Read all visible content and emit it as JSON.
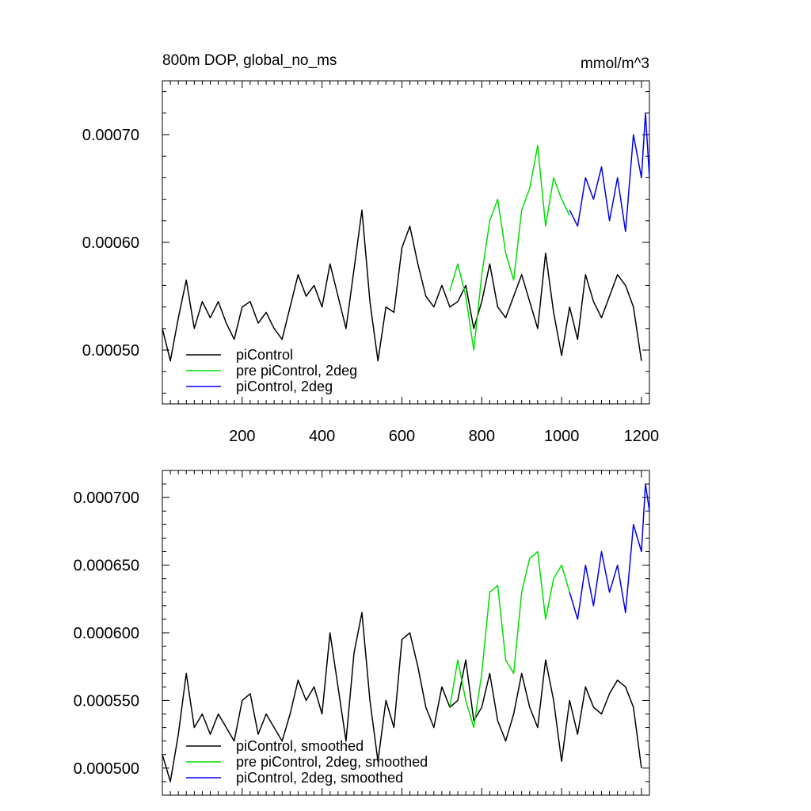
{
  "chart_data": [
    {
      "type": "line",
      "title": "800m DOP, global_no_ms",
      "units": "mmol/m^3",
      "xlim": [
        0,
        1220
      ],
      "ylim": [
        0.00045,
        0.00075
      ],
      "x_tick_labels": [
        "200",
        "400",
        "600",
        "800",
        "1000",
        "1200"
      ],
      "x_tick_values": [
        200,
        400,
        600,
        800,
        1000,
        1200
      ],
      "y_tick_labels": [
        "0.00050",
        "0.00060",
        "0.00070"
      ],
      "y_tick_values": [
        0.0005,
        0.0006,
        0.0007
      ],
      "legend_position": "bottom-left",
      "series": [
        {
          "name": "piControl",
          "color": "#000000",
          "x": [
            0,
            20,
            40,
            60,
            80,
            100,
            120,
            140,
            160,
            180,
            200,
            220,
            240,
            260,
            280,
            300,
            320,
            340,
            360,
            380,
            400,
            420,
            440,
            460,
            480,
            500,
            520,
            540,
            560,
            580,
            600,
            620,
            640,
            660,
            680,
            700,
            720,
            740,
            760,
            780,
            800,
            820,
            840,
            860,
            880,
            900,
            920,
            940,
            960,
            980,
            1000,
            1020,
            1040,
            1060,
            1080,
            1100,
            1120,
            1140,
            1160,
            1180,
            1200
          ],
          "y": [
            0.00052,
            0.00049,
            0.00053,
            0.000565,
            0.00052,
            0.000545,
            0.00053,
            0.000545,
            0.000525,
            0.00051,
            0.00054,
            0.000545,
            0.000525,
            0.000535,
            0.00052,
            0.00051,
            0.00054,
            0.00057,
            0.00055,
            0.00056,
            0.00054,
            0.00058,
            0.00055,
            0.00052,
            0.000575,
            0.00063,
            0.000545,
            0.00049,
            0.00054,
            0.000535,
            0.000595,
            0.000615,
            0.00058,
            0.00055,
            0.00054,
            0.00056,
            0.00054,
            0.000545,
            0.00056,
            0.00052,
            0.000545,
            0.00058,
            0.00054,
            0.00053,
            0.00055,
            0.00057,
            0.000545,
            0.00052,
            0.00059,
            0.000535,
            0.000495,
            0.00054,
            0.00051,
            0.00057,
            0.000545,
            0.00053,
            0.00055,
            0.00057,
            0.00056,
            0.00054,
            0.00049
          ]
        },
        {
          "name": "pre piControl, 2deg",
          "color": "#00dd00",
          "x": [
            720,
            740,
            760,
            780,
            800,
            820,
            840,
            860,
            880,
            900,
            920,
            940,
            960,
            980,
            1000,
            1020
          ],
          "y": [
            0.000555,
            0.00058,
            0.00055,
            0.0005,
            0.00057,
            0.00062,
            0.00064,
            0.00059,
            0.000565,
            0.00063,
            0.00065,
            0.00069,
            0.000615,
            0.00066,
            0.00064,
            0.000625
          ]
        },
        {
          "name": "piControl, 2deg",
          "color": "#0000ee",
          "x": [
            1020,
            1040,
            1060,
            1080,
            1100,
            1120,
            1140,
            1160,
            1180,
            1200,
            1210,
            1220
          ],
          "y": [
            0.00063,
            0.000615,
            0.00066,
            0.00064,
            0.00067,
            0.00062,
            0.00066,
            0.00061,
            0.0007,
            0.00066,
            0.00072,
            0.00066
          ]
        }
      ]
    },
    {
      "type": "line",
      "xlim": [
        0,
        1220
      ],
      "ylim": [
        0.00048,
        0.00072
      ],
      "y_tick_labels": [
        "0.000500",
        "0.000550",
        "0.000600",
        "0.000650",
        "0.000700"
      ],
      "y_tick_values": [
        0.0005,
        0.00055,
        0.0006,
        0.00065,
        0.0007
      ],
      "legend_position": "bottom-left",
      "series": [
        {
          "name": "piControl, smoothed",
          "color": "#000000",
          "x": [
            0,
            20,
            40,
            60,
            80,
            100,
            120,
            140,
            160,
            180,
            200,
            220,
            240,
            260,
            280,
            300,
            320,
            340,
            360,
            380,
            400,
            420,
            440,
            460,
            480,
            500,
            520,
            540,
            560,
            580,
            600,
            620,
            640,
            660,
            680,
            700,
            720,
            740,
            760,
            780,
            800,
            820,
            840,
            860,
            880,
            900,
            920,
            940,
            960,
            980,
            1000,
            1020,
            1040,
            1060,
            1080,
            1100,
            1120,
            1140,
            1160,
            1180,
            1200
          ],
          "y": [
            0.00051,
            0.00049,
            0.000525,
            0.00057,
            0.00053,
            0.00054,
            0.000525,
            0.00054,
            0.00053,
            0.00052,
            0.00055,
            0.000555,
            0.000525,
            0.00054,
            0.00053,
            0.00052,
            0.00054,
            0.000565,
            0.00055,
            0.00056,
            0.00054,
            0.0006,
            0.00056,
            0.00052,
            0.000585,
            0.000615,
            0.00055,
            0.000505,
            0.00055,
            0.00053,
            0.000595,
            0.0006,
            0.000575,
            0.000545,
            0.00053,
            0.00056,
            0.000545,
            0.00055,
            0.00058,
            0.000535,
            0.000545,
            0.00057,
            0.000535,
            0.00052,
            0.00054,
            0.00057,
            0.000545,
            0.00053,
            0.00058,
            0.00055,
            0.000505,
            0.00055,
            0.000525,
            0.00056,
            0.000545,
            0.00054,
            0.000555,
            0.000565,
            0.00056,
            0.000545,
            0.0005
          ]
        },
        {
          "name": "pre piControl, 2deg, smoothed",
          "color": "#00dd00",
          "x": [
            720,
            740,
            760,
            780,
            800,
            820,
            840,
            860,
            880,
            900,
            920,
            940,
            960,
            980,
            1000,
            1020
          ],
          "y": [
            0.000545,
            0.00058,
            0.00055,
            0.00053,
            0.00057,
            0.00063,
            0.000635,
            0.00058,
            0.00057,
            0.00063,
            0.000655,
            0.00066,
            0.00061,
            0.00064,
            0.00065,
            0.00063
          ]
        },
        {
          "name": "piControl, 2deg, smoothed",
          "color": "#0000ee",
          "x": [
            1020,
            1040,
            1060,
            1080,
            1100,
            1120,
            1140,
            1160,
            1180,
            1200,
            1210,
            1220
          ],
          "y": [
            0.00063,
            0.00061,
            0.00065,
            0.00062,
            0.00066,
            0.00063,
            0.00065,
            0.000615,
            0.00068,
            0.00066,
            0.00071,
            0.00069
          ]
        }
      ]
    }
  ]
}
